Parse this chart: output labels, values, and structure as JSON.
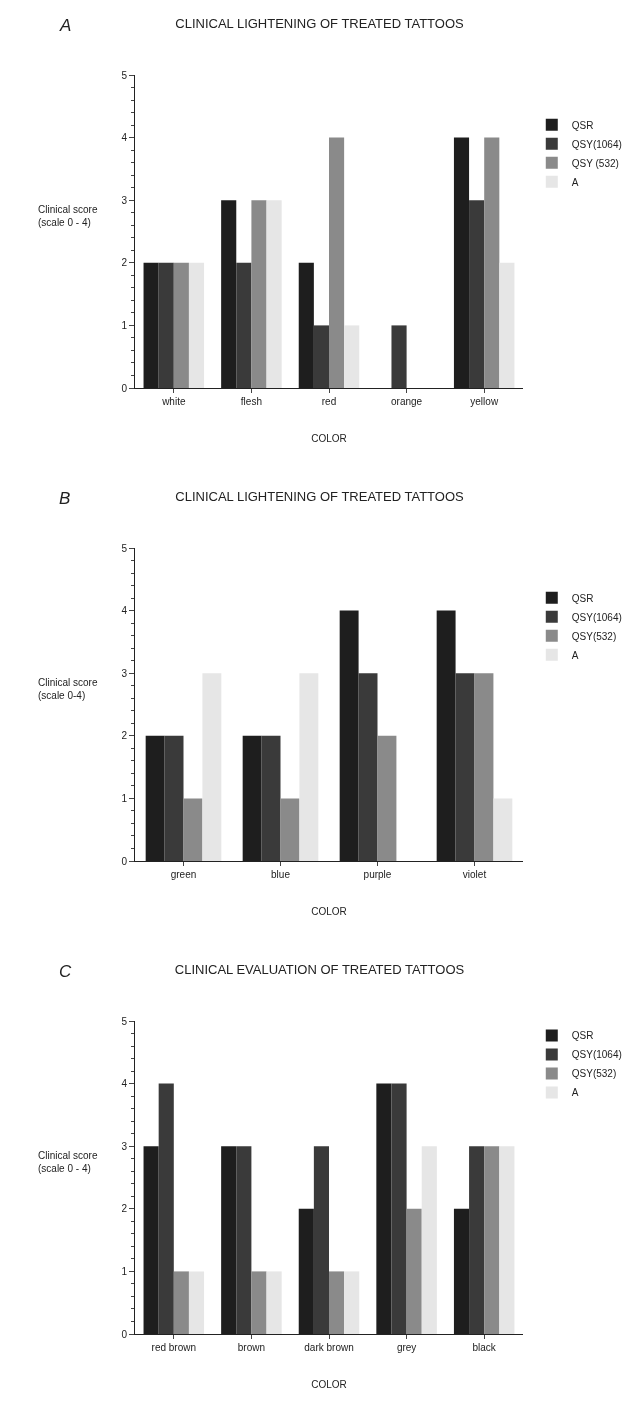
{
  "chart_data": [
    {
      "type": "bar",
      "title": "CLINICAL LIGHTENING OF TREATED TATTOOS",
      "xlabel": "COLOR",
      "ylabel": "Clinical score\n(scale 0 - 4)",
      "annotations": [
        "A"
      ],
      "categories": [
        "white",
        "flesh",
        "red",
        "orange",
        "yellow"
      ],
      "ylim": [
        0,
        5
      ],
      "yticks": [
        0,
        1,
        2,
        3,
        4,
        5
      ],
      "grid": false,
      "legend": "right",
      "series": [
        {
          "name": "QSR",
          "color": "#1e1e1e",
          "values": [
            2,
            3,
            2,
            0,
            4
          ]
        },
        {
          "name": "QSY(1064)",
          "color": "#3a3a3a",
          "values": [
            2,
            2,
            1,
            1,
            3
          ]
        },
        {
          "name": "QSY (532)",
          "color": "#8a8a8a",
          "values": [
            2,
            3,
            4,
            0,
            4
          ]
        },
        {
          "name": "A",
          "color": "#e6e6e6",
          "values": [
            2,
            3,
            1,
            0,
            2
          ]
        }
      ]
    },
    {
      "type": "bar",
      "title": "CLINICAL LIGHTENING OF TREATED TATTOOS",
      "xlabel": "COLOR",
      "ylabel": "Clinical score\n(scale 0-4)",
      "annotations": [
        "B"
      ],
      "categories": [
        "green",
        "blue",
        "purple",
        "violet"
      ],
      "ylim": [
        0,
        5
      ],
      "yticks": [
        0,
        1,
        2,
        3,
        4,
        5
      ],
      "grid": false,
      "legend": "right",
      "series": [
        {
          "name": "QSR",
          "color": "#1e1e1e",
          "values": [
            2,
            2,
            4,
            4
          ]
        },
        {
          "name": "QSY(1064)",
          "color": "#3a3a3a",
          "values": [
            2,
            2,
            3,
            3
          ]
        },
        {
          "name": "QSY(532)",
          "color": "#8a8a8a",
          "values": [
            1,
            1,
            2,
            3
          ]
        },
        {
          "name": "A",
          "color": "#e6e6e6",
          "values": [
            3,
            3,
            0,
            1
          ]
        }
      ]
    },
    {
      "type": "bar",
      "title": "CLINICAL EVALUATION OF TREATED TATTOOS",
      "xlabel": "COLOR",
      "ylabel": "Clinical score\n(scale 0 - 4)",
      "annotations": [
        "C"
      ],
      "categories": [
        "red brown",
        "brown",
        "dark brown",
        "grey",
        "black"
      ],
      "ylim": [
        0,
        5
      ],
      "yticks": [
        0,
        1,
        2,
        3,
        4,
        5
      ],
      "grid": false,
      "legend": "top right",
      "series": [
        {
          "name": "QSR",
          "color": "#1e1e1e",
          "values": [
            3,
            3,
            2,
            4,
            2
          ]
        },
        {
          "name": "QSY(1064)",
          "color": "#3a3a3a",
          "values": [
            4,
            3,
            3,
            4,
            3
          ]
        },
        {
          "name": "QSY(532)",
          "color": "#8a8a8a",
          "values": [
            1,
            1,
            1,
            2,
            3
          ]
        },
        {
          "name": "A",
          "color": "#e6e6e6",
          "values": [
            1,
            1,
            1,
            3,
            3
          ]
        }
      ]
    }
  ]
}
